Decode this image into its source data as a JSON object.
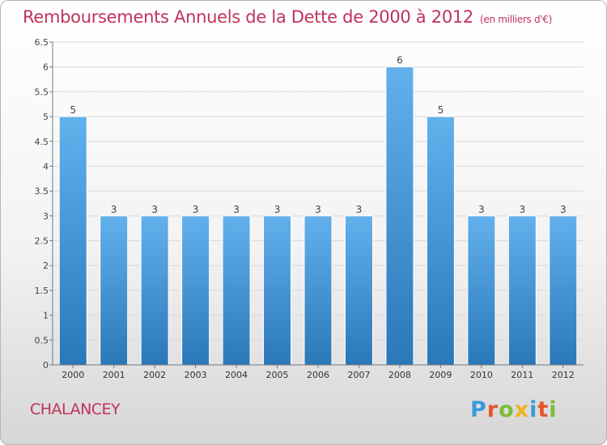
{
  "title": "Remboursements Annuels de la Dette de 2000 à 2012",
  "unit_note": "(en milliers d'€)",
  "commune": "CHALANCEY",
  "logo": {
    "text": "Proxiti",
    "letter_colors": [
      "#3a9ad9",
      "#e8542c",
      "#7cbd3a",
      "#f2b31c",
      "#3a9ad9",
      "#e8542c",
      "#7cbd3a"
    ]
  },
  "colors": {
    "bar_light": "#62b0ec",
    "bar_dark": "#2a78b8",
    "title": "#c0325a",
    "grid": "#d9d9d9"
  },
  "chart_data": {
    "type": "bar",
    "title": "Remboursements Annuels de la Dette de 2000 à 2012",
    "categories": [
      "2000",
      "2001",
      "2002",
      "2003",
      "2004",
      "2005",
      "2006",
      "2007",
      "2008",
      "2009",
      "2010",
      "2011",
      "2012"
    ],
    "values": [
      5,
      3,
      3,
      3,
      3,
      3,
      3,
      3,
      6,
      5,
      3,
      3,
      3
    ],
    "data_labels": [
      "5",
      "3",
      "3",
      "3",
      "3",
      "3",
      "3",
      "3",
      "6",
      "5",
      "3",
      "3",
      "3"
    ],
    "ylim": [
      0,
      6.5
    ],
    "y_ticks": [
      "0",
      "0.5",
      "1",
      "1.5",
      "2",
      "2.5",
      "3",
      "3.5",
      "4",
      "4.5",
      "5",
      "5.5",
      "6",
      "6.5"
    ],
    "xlabel": "",
    "ylabel": "",
    "grid": true
  }
}
